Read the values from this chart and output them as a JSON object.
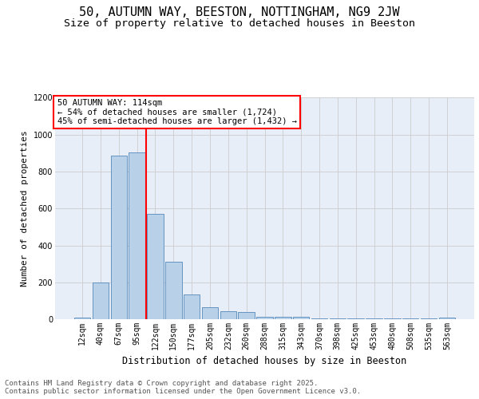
{
  "title_line1": "50, AUTUMN WAY, BEESTON, NOTTINGHAM, NG9 2JW",
  "title_line2": "Size of property relative to detached houses in Beeston",
  "xlabel": "Distribution of detached houses by size in Beeston",
  "ylabel": "Number of detached properties",
  "categories": [
    "12sqm",
    "40sqm",
    "67sqm",
    "95sqm",
    "122sqm",
    "150sqm",
    "177sqm",
    "205sqm",
    "232sqm",
    "260sqm",
    "288sqm",
    "315sqm",
    "343sqm",
    "370sqm",
    "398sqm",
    "425sqm",
    "453sqm",
    "480sqm",
    "508sqm",
    "535sqm",
    "563sqm"
  ],
  "heights": [
    10,
    200,
    885,
    905,
    570,
    310,
    135,
    65,
    45,
    40,
    15,
    15,
    15,
    5,
    5,
    5,
    5,
    5,
    5,
    5,
    10
  ],
  "bar_color": "#b8d0e8",
  "bar_edge_color": "#5588bb",
  "grid_color": "#cccccc",
  "bg_color": "#e8eef8",
  "vline_color": "red",
  "vline_pos": 3.5,
  "annotation_text_line1": "50 AUTUMN WAY: 114sqm",
  "annotation_text_line2": "← 54% of detached houses are smaller (1,724)",
  "annotation_text_line3": "45% of semi-detached houses are larger (1,432) →",
  "ylim": [
    0,
    1200
  ],
  "yticks": [
    0,
    200,
    400,
    600,
    800,
    1000,
    1200
  ],
  "footer_text": "Contains HM Land Registry data © Crown copyright and database right 2025.\nContains public sector information licensed under the Open Government Licence v3.0.",
  "title_fontsize": 11,
  "subtitle_fontsize": 9.5,
  "ylabel_fontsize": 8,
  "xlabel_fontsize": 8.5,
  "tick_fontsize": 7,
  "annot_fontsize": 7.5,
  "footer_fontsize": 6.5
}
